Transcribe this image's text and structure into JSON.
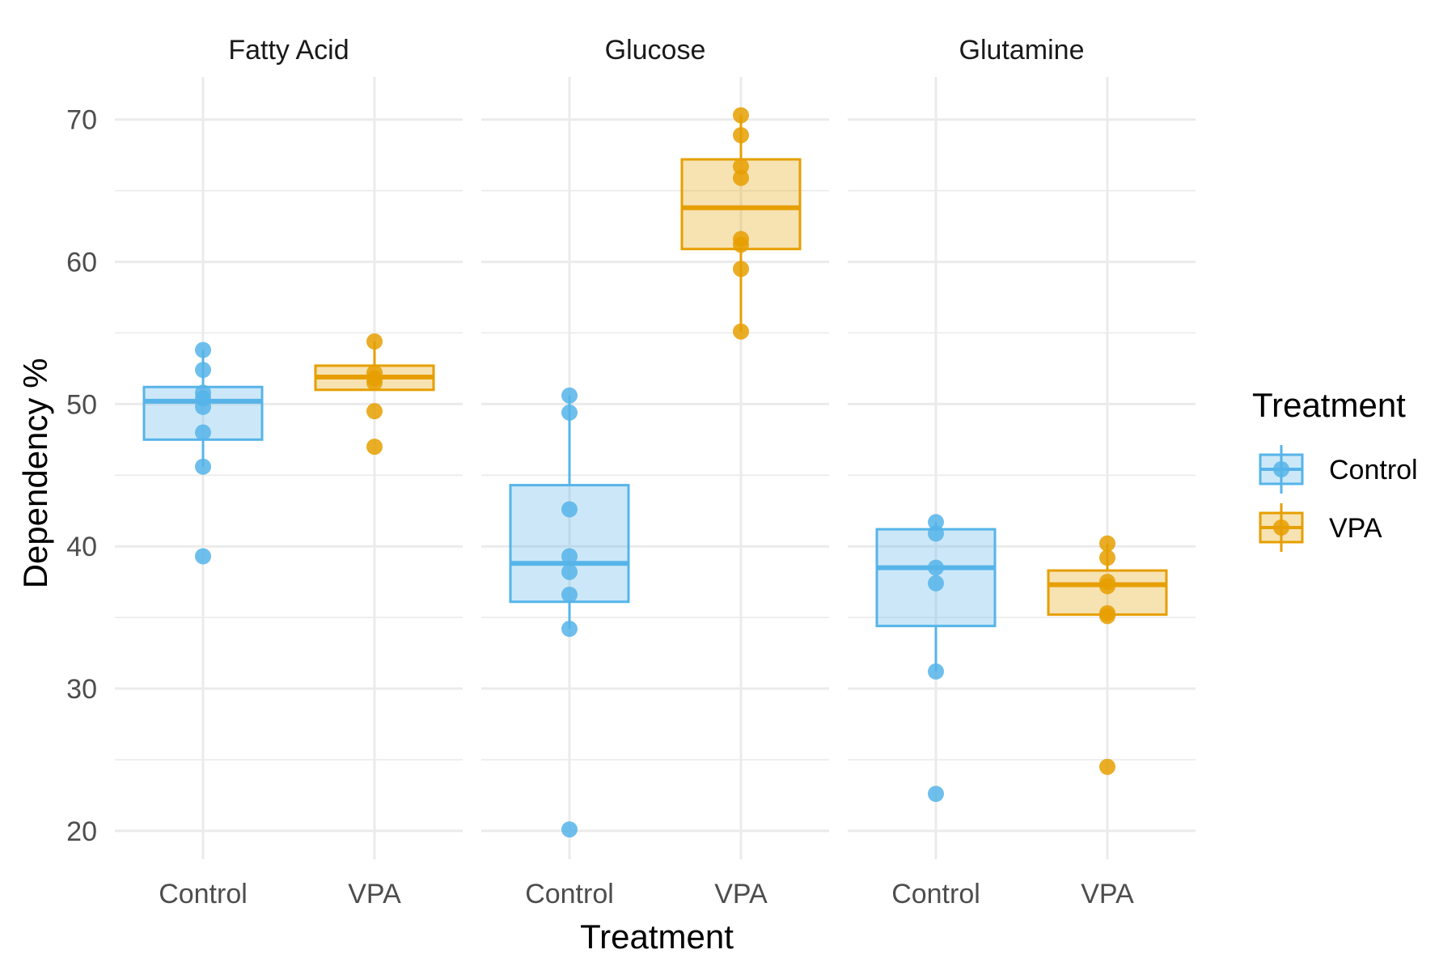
{
  "chart_data": {
    "type": "box",
    "xlabel": "Treatment",
    "ylabel": "Dependency %",
    "ylim": [
      18,
      73
    ],
    "yticks": [
      20,
      30,
      40,
      50,
      60,
      70
    ],
    "grid": true,
    "legend": {
      "title": "Treatment",
      "placement": "right",
      "items": [
        "Control",
        "VPA"
      ]
    },
    "colors": {
      "Control": "#56B4E9",
      "VPA": "#E69F00"
    },
    "facets": [
      {
        "label": "Fatty Acid",
        "groups": [
          {
            "treatment": "Control",
            "box": {
              "lower_whisker": 45.6,
              "q1": 47.5,
              "median": 50.2,
              "q3": 51.2,
              "upper_whisker": 53.8
            },
            "points": [
              53.8,
              52.4,
              50.8,
              50.4,
              49.8,
              48.0,
              45.6,
              39.3
            ]
          },
          {
            "treatment": "VPA",
            "box": {
              "lower_whisker": 51.0,
              "q1": 51.0,
              "median": 51.9,
              "q3": 52.7,
              "upper_whisker": 54.4
            },
            "points": [
              54.4,
              52.2,
              51.8,
              51.5,
              49.5,
              47.0
            ]
          }
        ]
      },
      {
        "label": "Glucose",
        "groups": [
          {
            "treatment": "Control",
            "box": {
              "lower_whisker": 34.2,
              "q1": 36.1,
              "median": 38.8,
              "q3": 44.3,
              "upper_whisker": 50.6
            },
            "points": [
              50.6,
              49.4,
              42.6,
              39.3,
              38.2,
              36.6,
              34.2,
              20.1
            ]
          },
          {
            "treatment": "VPA",
            "box": {
              "lower_whisker": 55.1,
              "q1": 60.9,
              "median": 63.8,
              "q3": 67.2,
              "upper_whisker": 70.3
            },
            "points": [
              70.3,
              68.9,
              66.7,
              65.9,
              61.6,
              61.2,
              59.5,
              55.1
            ]
          }
        ]
      },
      {
        "label": "Glutamine",
        "groups": [
          {
            "treatment": "Control",
            "box": {
              "lower_whisker": 31.2,
              "q1": 34.4,
              "median": 38.5,
              "q3": 41.2,
              "upper_whisker": 41.7
            },
            "points": [
              41.7,
              40.9,
              38.5,
              37.4,
              31.2,
              22.6
            ]
          },
          {
            "treatment": "VPA",
            "box": {
              "lower_whisker": 35.2,
              "q1": 35.2,
              "median": 37.3,
              "q3": 38.3,
              "upper_whisker": 40.2
            },
            "points": [
              40.2,
              39.2,
              37.5,
              37.2,
              35.3,
              35.1,
              24.5
            ]
          }
        ]
      }
    ]
  }
}
